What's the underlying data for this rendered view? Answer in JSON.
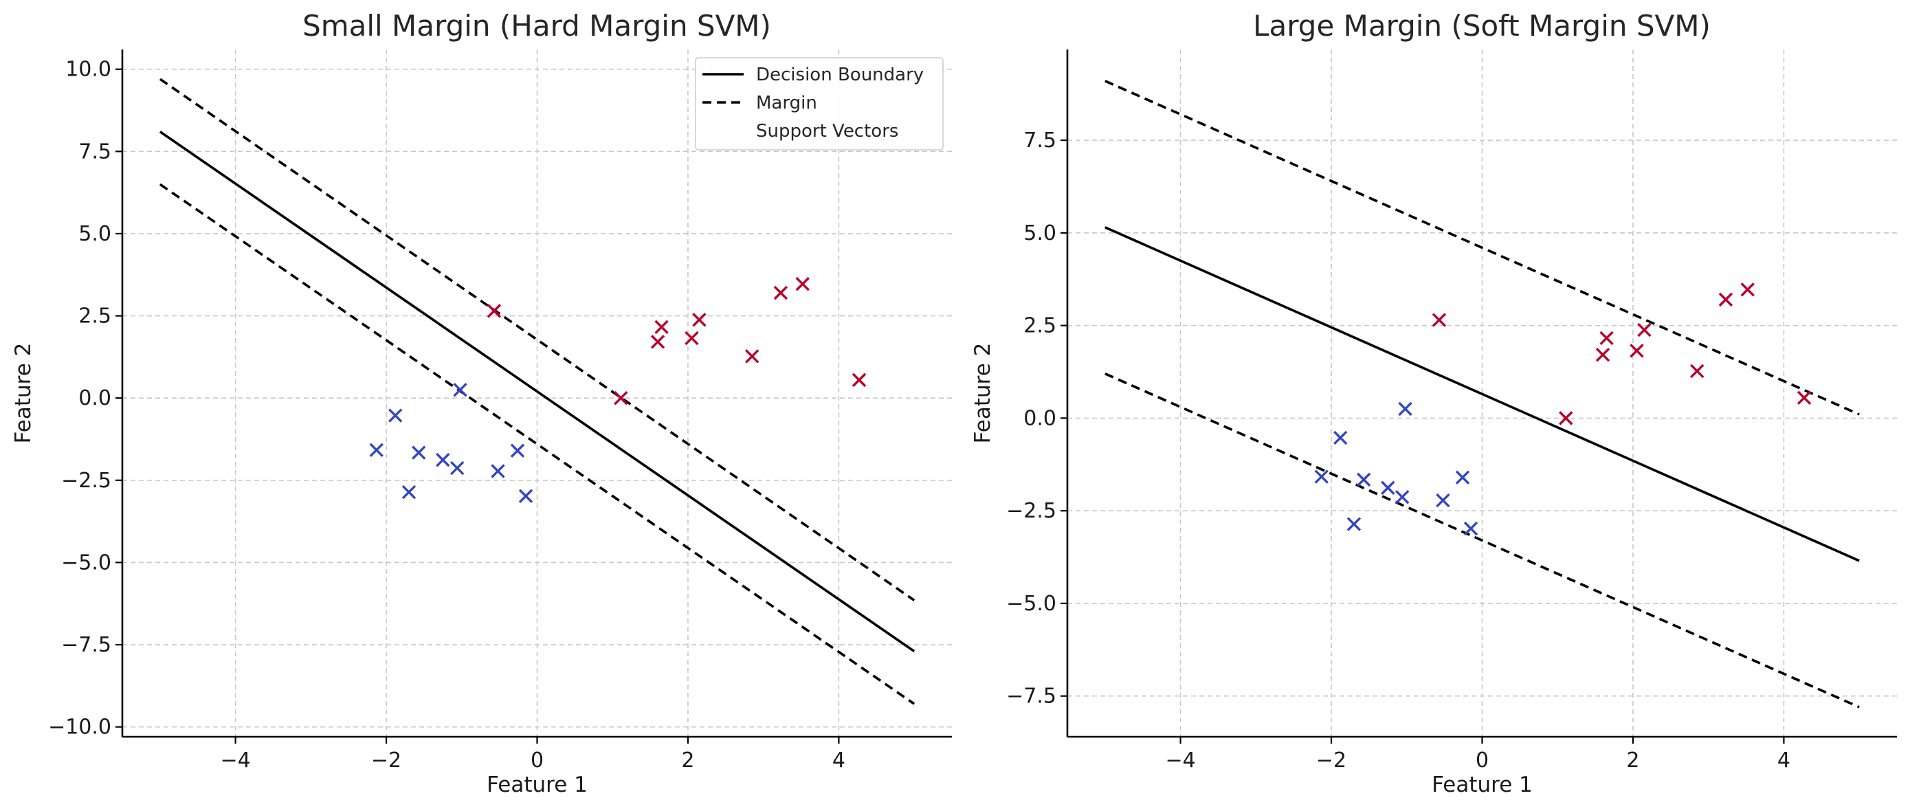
{
  "chart_data": [
    {
      "type": "scatter",
      "title": "Small Margin (Hard Margin SVM)",
      "xlabel": "Feature 1",
      "ylabel": "Feature 2",
      "xlim": [
        -5.5,
        5.5
      ],
      "ylim": [
        -10.3,
        10.6
      ],
      "xticks": [
        -4,
        -2,
        0,
        2,
        4
      ],
      "xtick_labels": [
        "−4",
        "−2",
        "0",
        "2",
        "4"
      ],
      "yticks": [
        -10,
        -7.5,
        -5,
        -2.5,
        0,
        2.5,
        5,
        7.5,
        10
      ],
      "ytick_labels": [
        "−10.0",
        "−7.5",
        "−5.0",
        "−2.5",
        "0.0",
        "2.5",
        "5.0",
        "7.5",
        "10.0"
      ],
      "grid": true,
      "legend": {
        "position": "top-right",
        "entries": [
          {
            "label": "Decision Boundary",
            "style": "solid"
          },
          {
            "label": "Margin",
            "style": "dashed"
          },
          {
            "label": "Support Vectors",
            "style": "none"
          }
        ]
      },
      "lines": [
        {
          "role": "boundary",
          "style": "solid",
          "x": [
            -5,
            5
          ],
          "y": [
            8.1,
            -7.7
          ]
        },
        {
          "role": "margin",
          "style": "dashed",
          "x": [
            -5,
            5
          ],
          "y": [
            9.7,
            -6.15
          ]
        },
        {
          "role": "margin",
          "style": "dashed",
          "x": [
            -5,
            5
          ],
          "y": [
            6.5,
            -9.3
          ]
        }
      ],
      "series": [
        {
          "color": "#3545c0",
          "marker": "x",
          "x": [
            -2.13,
            -1.88,
            -1.7,
            -1.57,
            -1.25,
            -1.06,
            -1.02,
            -0.52,
            -0.26,
            -0.15
          ],
          "y": [
            -1.58,
            -0.53,
            -2.86,
            -1.66,
            -1.88,
            -2.13,
            0.25,
            -2.22,
            -1.6,
            -2.98
          ]
        },
        {
          "color": "#b8002c",
          "marker": "x",
          "x": [
            -0.57,
            1.11,
            1.6,
            1.65,
            2.05,
            2.15,
            2.85,
            3.23,
            3.52,
            4.27
          ],
          "y": [
            2.65,
            0.0,
            1.71,
            2.16,
            1.82,
            2.38,
            1.27,
            3.2,
            3.47,
            0.55
          ]
        }
      ]
    },
    {
      "type": "scatter",
      "title": "Large Margin (Soft Margin SVM)",
      "xlabel": "Feature 1",
      "ylabel": "Feature 2",
      "xlim": [
        -5.5,
        5.5
      ],
      "ylim": [
        -8.6,
        9.95
      ],
      "xticks": [
        -4,
        -2,
        0,
        2,
        4
      ],
      "xtick_labels": [
        "−4",
        "−2",
        "0",
        "2",
        "4"
      ],
      "yticks": [
        -7.5,
        -5,
        -2.5,
        0,
        2.5,
        5,
        7.5
      ],
      "ytick_labels": [
        "−7.5",
        "−5.0",
        "−2.5",
        "0.0",
        "2.5",
        "5.0",
        "7.5"
      ],
      "grid": true,
      "lines": [
        {
          "role": "boundary",
          "style": "solid",
          "x": [
            -5,
            5
          ],
          "y": [
            5.15,
            -3.85
          ]
        },
        {
          "role": "margin",
          "style": "dashed",
          "x": [
            -5,
            5
          ],
          "y": [
            9.1,
            0.1
          ]
        },
        {
          "role": "margin",
          "style": "dashed",
          "x": [
            -5,
            5
          ],
          "y": [
            1.2,
            -7.8
          ]
        }
      ],
      "series": [
        {
          "color": "#3545c0",
          "marker": "x",
          "x": [
            -2.13,
            -1.88,
            -1.7,
            -1.57,
            -1.25,
            -1.06,
            -1.02,
            -0.52,
            -0.26,
            -0.15
          ],
          "y": [
            -1.58,
            -0.53,
            -2.86,
            -1.66,
            -1.88,
            -2.13,
            0.25,
            -2.22,
            -1.6,
            -2.98
          ]
        },
        {
          "color": "#b8002c",
          "marker": "x",
          "x": [
            -0.57,
            1.11,
            1.6,
            1.65,
            2.05,
            2.15,
            2.85,
            3.23,
            3.52,
            4.27
          ],
          "y": [
            2.65,
            0.0,
            1.71,
            2.16,
            1.82,
            2.38,
            1.27,
            3.2,
            3.47,
            0.55
          ]
        }
      ]
    }
  ]
}
